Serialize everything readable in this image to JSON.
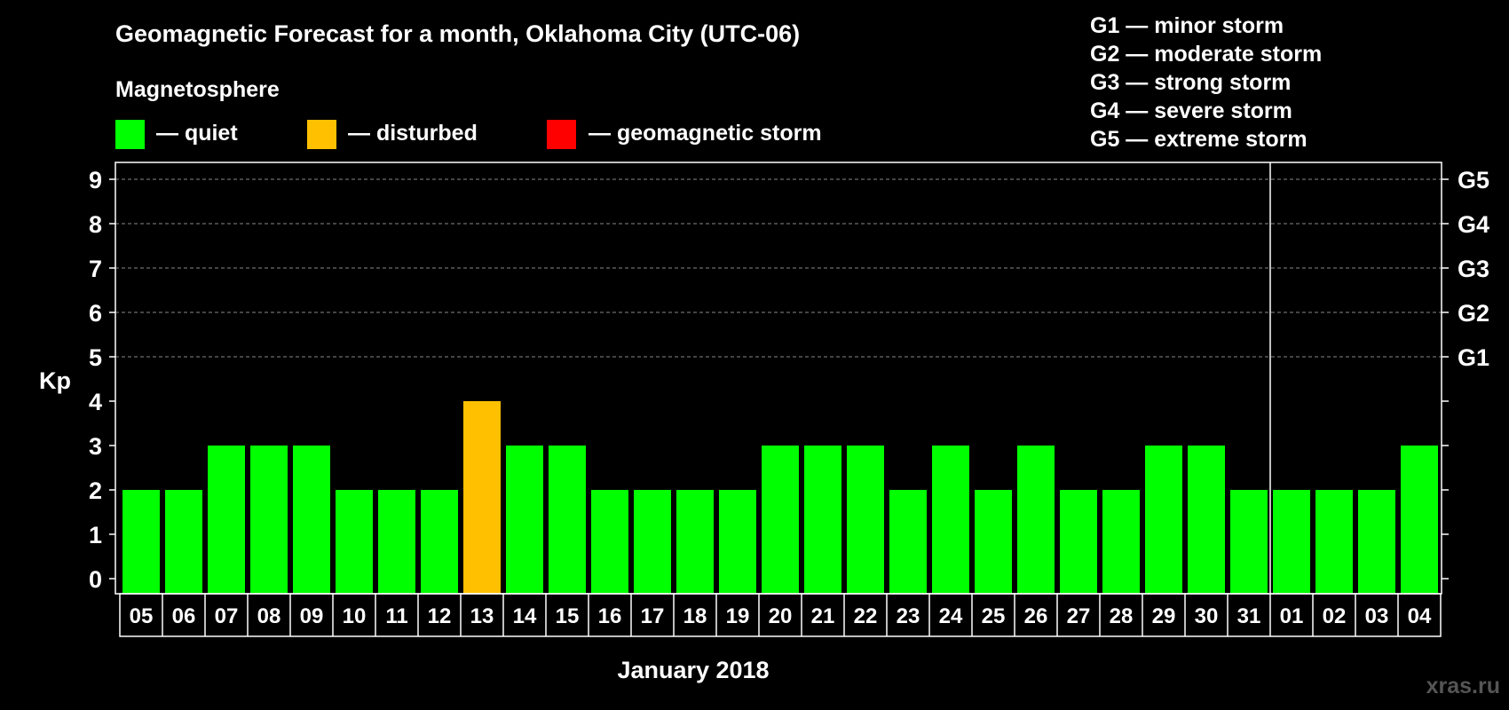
{
  "chart_data": {
    "type": "bar",
    "title": "Geomagnetic Forecast for a month, Oklahoma City (UTC-06)",
    "subtitle": "Magnetosphere",
    "legend": [
      {
        "label": "— quiet",
        "color": "#00ff00"
      },
      {
        "label": "— disturbed",
        "color": "#ffc000"
      },
      {
        "label": "— geomagnetic storm",
        "color": "#ff0000"
      }
    ],
    "storm_scale": [
      "G1 — minor storm",
      "G2 — moderate storm",
      "G3 — strong storm",
      "G4 — severe storm",
      "G5 — extreme storm"
    ],
    "ylabel": "Kp",
    "xlabel": "January 2018",
    "ylim": [
      0,
      9
    ],
    "yticks": [
      "0",
      "1",
      "2",
      "3",
      "4",
      "5",
      "6",
      "7",
      "8",
      "9"
    ],
    "right_ticks": [
      {
        "label": "G1",
        "kp": 5
      },
      {
        "label": "G2",
        "kp": 6
      },
      {
        "label": "G3",
        "kp": 7
      },
      {
        "label": "G4",
        "kp": 8
      },
      {
        "label": "G5",
        "kp": 9
      }
    ],
    "grid": true,
    "categories": [
      "05",
      "06",
      "07",
      "08",
      "09",
      "10",
      "11",
      "12",
      "13",
      "14",
      "15",
      "16",
      "17",
      "18",
      "19",
      "20",
      "21",
      "22",
      "23",
      "24",
      "25",
      "26",
      "27",
      "28",
      "29",
      "30",
      "31",
      "01",
      "02",
      "03",
      "04"
    ],
    "values": [
      2,
      2,
      3,
      3,
      3,
      2,
      2,
      2,
      4,
      3,
      3,
      2,
      2,
      2,
      2,
      3,
      3,
      3,
      2,
      3,
      2,
      3,
      2,
      2,
      3,
      3,
      2,
      2,
      2,
      2,
      3
    ],
    "month_separator_after": "31",
    "thresholds": {
      "disturbed": 4,
      "storm": 5
    }
  },
  "watermark": "xras.ru"
}
